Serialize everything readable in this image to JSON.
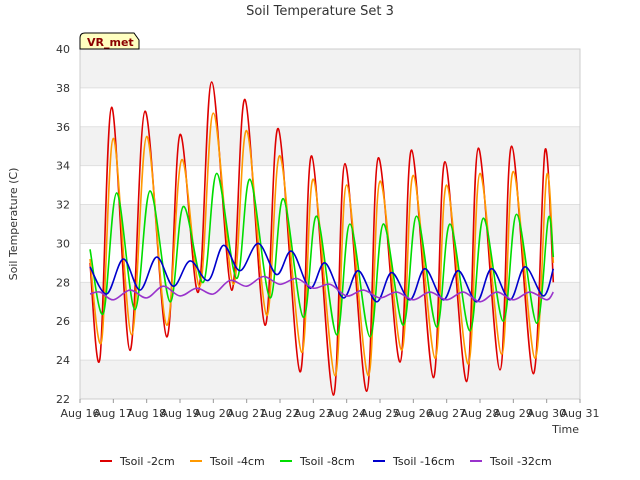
{
  "chart_data": {
    "type": "line",
    "title": "Soil Temperature Set 3",
    "xlabel": "Time",
    "ylabel": "Soil Temperature (C)",
    "xlim": [
      "2024-08-16",
      "2024-08-31"
    ],
    "ylim": [
      22,
      40
    ],
    "x_tick_labels": [
      "Aug 16",
      "Aug 17",
      "Aug 18",
      "Aug 19",
      "Aug 20",
      "Aug 21",
      "Aug 22",
      "Aug 23",
      "Aug 24",
      "Aug 25",
      "Aug 26",
      "Aug 27",
      "Aug 28",
      "Aug 29",
      "Aug 30",
      "Aug 31"
    ],
    "y_ticks": [
      22,
      24,
      26,
      28,
      30,
      32,
      34,
      36,
      38,
      40
    ],
    "grid": true,
    "legend_position": "bottom",
    "badge": "VR_met",
    "series": [
      {
        "name": "Tsoil -2cm",
        "color": "#dd0000",
        "sample_unit": "day",
        "points": [
          [
            0.3,
            29.0
          ],
          [
            0.6,
            24.1
          ],
          [
            0.95,
            37.0
          ],
          [
            1.5,
            24.5
          ],
          [
            1.95,
            36.8
          ],
          [
            2.6,
            25.2
          ],
          [
            3.0,
            35.6
          ],
          [
            3.55,
            27.5
          ],
          [
            3.95,
            38.3
          ],
          [
            4.55,
            27.6
          ],
          [
            4.95,
            37.4
          ],
          [
            5.55,
            25.8
          ],
          [
            5.95,
            35.9
          ],
          [
            6.6,
            23.4
          ],
          [
            6.95,
            34.5
          ],
          [
            7.6,
            22.2
          ],
          [
            7.95,
            34.1
          ],
          [
            8.6,
            22.4
          ],
          [
            8.95,
            34.4
          ],
          [
            9.6,
            23.9
          ],
          [
            9.95,
            34.8
          ],
          [
            10.6,
            23.1
          ],
          [
            10.95,
            34.2
          ],
          [
            11.6,
            22.9
          ],
          [
            11.95,
            34.9
          ],
          [
            12.6,
            23.5
          ],
          [
            12.95,
            35.0
          ],
          [
            13.6,
            23.3
          ],
          [
            13.95,
            34.8
          ],
          [
            14.2,
            28.0
          ]
        ]
      },
      {
        "name": "Tsoil -4cm",
        "color": "#ff9900",
        "sample_unit": "day",
        "points": [
          [
            0.3,
            29.2
          ],
          [
            0.65,
            25.0
          ],
          [
            1.0,
            35.4
          ],
          [
            1.55,
            25.3
          ],
          [
            2.0,
            35.5
          ],
          [
            2.6,
            25.8
          ],
          [
            3.05,
            34.3
          ],
          [
            3.6,
            27.8
          ],
          [
            4.0,
            36.7
          ],
          [
            4.6,
            27.9
          ],
          [
            5.0,
            35.8
          ],
          [
            5.6,
            26.3
          ],
          [
            6.0,
            34.5
          ],
          [
            6.65,
            24.4
          ],
          [
            7.0,
            33.3
          ],
          [
            7.65,
            23.2
          ],
          [
            8.0,
            33.0
          ],
          [
            8.65,
            23.2
          ],
          [
            9.0,
            33.2
          ],
          [
            9.65,
            24.5
          ],
          [
            10.0,
            33.5
          ],
          [
            10.65,
            24.1
          ],
          [
            11.0,
            33.0
          ],
          [
            11.65,
            23.8
          ],
          [
            12.0,
            33.6
          ],
          [
            12.65,
            24.3
          ],
          [
            13.0,
            33.7
          ],
          [
            13.65,
            24.1
          ],
          [
            14.0,
            33.5
          ],
          [
            14.2,
            29.0
          ]
        ]
      },
      {
        "name": "Tsoil -8cm",
        "color": "#00dd00",
        "sample_unit": "day",
        "points": [
          [
            0.3,
            29.7
          ],
          [
            0.7,
            26.4
          ],
          [
            1.1,
            32.6
          ],
          [
            1.65,
            26.6
          ],
          [
            2.1,
            32.7
          ],
          [
            2.7,
            27.0
          ],
          [
            3.1,
            31.9
          ],
          [
            3.7,
            28.0
          ],
          [
            4.1,
            33.6
          ],
          [
            4.7,
            28.2
          ],
          [
            5.1,
            33.3
          ],
          [
            5.7,
            27.2
          ],
          [
            6.1,
            32.3
          ],
          [
            6.7,
            26.2
          ],
          [
            7.1,
            31.4
          ],
          [
            7.7,
            25.3
          ],
          [
            8.1,
            31.0
          ],
          [
            8.7,
            25.2
          ],
          [
            9.1,
            31.0
          ],
          [
            9.7,
            25.8
          ],
          [
            10.1,
            31.4
          ],
          [
            10.7,
            25.7
          ],
          [
            11.1,
            31.0
          ],
          [
            11.7,
            25.5
          ],
          [
            12.1,
            31.3
          ],
          [
            12.7,
            26.0
          ],
          [
            13.1,
            31.5
          ],
          [
            13.7,
            25.9
          ],
          [
            14.05,
            31.3
          ],
          [
            14.2,
            29.3
          ]
        ]
      },
      {
        "name": "Tsoil -16cm",
        "color": "#0000cc",
        "sample_unit": "day",
        "points": [
          [
            0.3,
            28.8
          ],
          [
            0.8,
            27.4
          ],
          [
            1.3,
            29.2
          ],
          [
            1.8,
            27.6
          ],
          [
            2.3,
            29.3
          ],
          [
            2.8,
            27.8
          ],
          [
            3.3,
            29.1
          ],
          [
            3.85,
            28.1
          ],
          [
            4.3,
            29.9
          ],
          [
            4.8,
            28.6
          ],
          [
            5.35,
            30.0
          ],
          [
            5.9,
            28.4
          ],
          [
            6.35,
            29.6
          ],
          [
            6.9,
            27.7
          ],
          [
            7.35,
            29.0
          ],
          [
            7.9,
            27.2
          ],
          [
            8.35,
            28.6
          ],
          [
            8.9,
            27.0
          ],
          [
            9.35,
            28.5
          ],
          [
            9.9,
            27.1
          ],
          [
            10.35,
            28.7
          ],
          [
            10.9,
            27.1
          ],
          [
            11.35,
            28.6
          ],
          [
            11.9,
            27.0
          ],
          [
            12.35,
            28.7
          ],
          [
            12.9,
            27.1
          ],
          [
            13.35,
            28.8
          ],
          [
            13.9,
            27.3
          ],
          [
            14.2,
            28.7
          ]
        ]
      },
      {
        "name": "Tsoil -32cm",
        "color": "#9933cc",
        "sample_unit": "day",
        "points": [
          [
            0.3,
            27.4
          ],
          [
            0.6,
            27.5
          ],
          [
            1.0,
            27.1
          ],
          [
            1.5,
            27.6
          ],
          [
            2.0,
            27.2
          ],
          [
            2.5,
            27.8
          ],
          [
            3.0,
            27.3
          ],
          [
            3.5,
            27.7
          ],
          [
            4.0,
            27.4
          ],
          [
            4.5,
            28.1
          ],
          [
            5.0,
            27.8
          ],
          [
            5.5,
            28.3
          ],
          [
            6.0,
            27.9
          ],
          [
            6.5,
            28.2
          ],
          [
            7.0,
            27.7
          ],
          [
            7.5,
            27.9
          ],
          [
            8.0,
            27.3
          ],
          [
            8.5,
            27.6
          ],
          [
            9.0,
            27.2
          ],
          [
            9.5,
            27.5
          ],
          [
            10.0,
            27.1
          ],
          [
            10.5,
            27.5
          ],
          [
            11.0,
            27.1
          ],
          [
            11.5,
            27.5
          ],
          [
            12.0,
            27.0
          ],
          [
            12.5,
            27.5
          ],
          [
            13.0,
            27.1
          ],
          [
            13.5,
            27.5
          ],
          [
            14.0,
            27.1
          ],
          [
            14.2,
            27.5
          ]
        ]
      }
    ]
  }
}
